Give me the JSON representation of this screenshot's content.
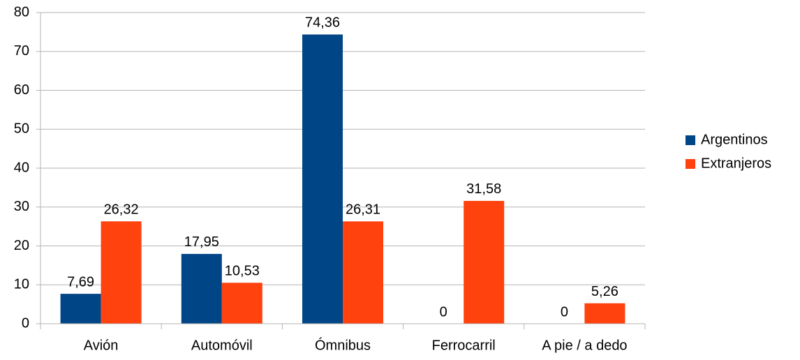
{
  "chart_data": {
    "type": "bar",
    "categories": [
      "Avión",
      "Automóvil",
      "Ómnibus",
      "Ferrocarril",
      "A pie / a dedo"
    ],
    "series": [
      {
        "name": "Argentinos",
        "color": "#004586",
        "values": [
          7.69,
          17.95,
          74.36,
          0,
          0
        ],
        "value_labels": [
          "7,69",
          "17,95",
          "74,36",
          "0",
          "0"
        ]
      },
      {
        "name": "Extranjeros",
        "color": "#ff420e",
        "values": [
          26.32,
          10.53,
          26.31,
          31.58,
          5.26
        ],
        "value_labels": [
          "26,32",
          "10,53",
          "26,31",
          "31,58",
          "5,26"
        ]
      }
    ],
    "ylim": [
      0,
      80
    ],
    "yticks": [
      0,
      10,
      20,
      30,
      40,
      50,
      60,
      70,
      80
    ],
    "grid": true,
    "legend": "right"
  }
}
